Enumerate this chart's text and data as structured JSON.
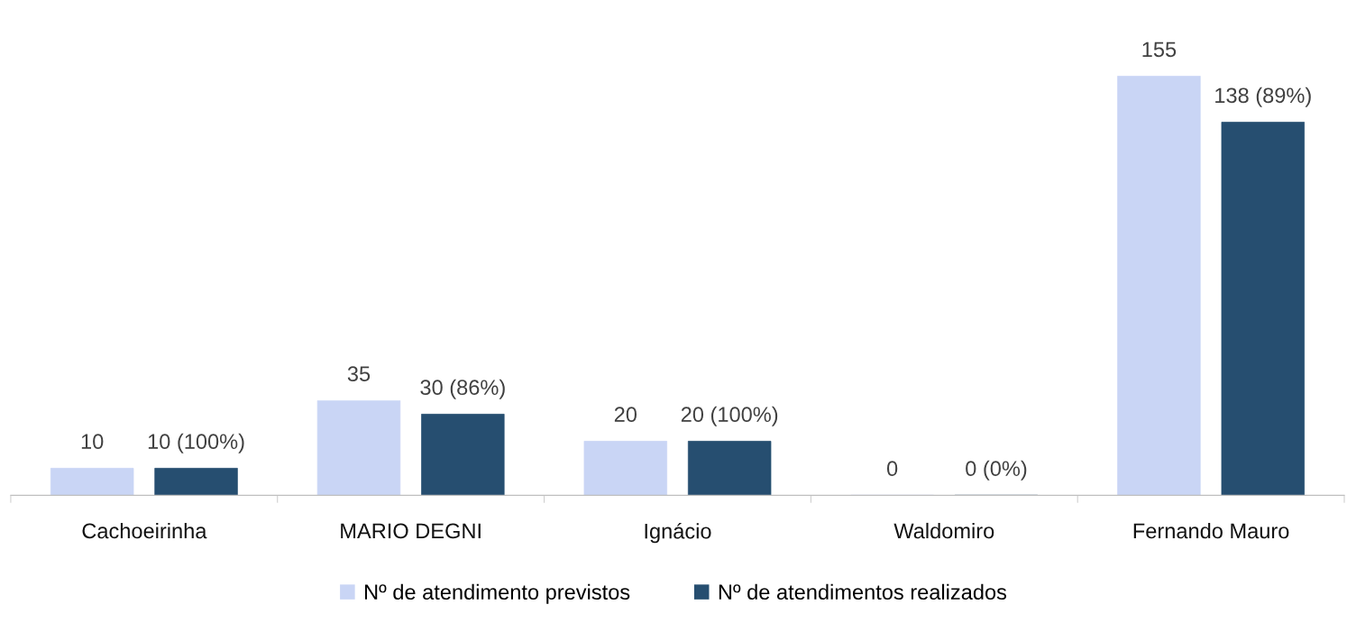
{
  "chart_data": {
    "type": "bar",
    "categories": [
      "Cachoeirinha",
      "MARIO DEGNI",
      "Ignácio",
      "Waldomiro",
      "Fernando Mauro"
    ],
    "series": [
      {
        "name": "Nº de atendimento previstos",
        "color": "#c9d5f5",
        "values": [
          10,
          35,
          20,
          0,
          155
        ],
        "value_labels": [
          "10",
          "35",
          "20",
          "0",
          "155"
        ]
      },
      {
        "name": "Nº de atendimentos realizados",
        "color": "#264e70",
        "values": [
          10,
          30,
          20,
          0,
          138
        ],
        "value_labels": [
          "10 (100%)",
          "30 (86%)",
          "20 (100%)",
          "0 (0%)",
          "138 (89%)"
        ]
      }
    ],
    "grid": false,
    "legend": "bottom"
  }
}
